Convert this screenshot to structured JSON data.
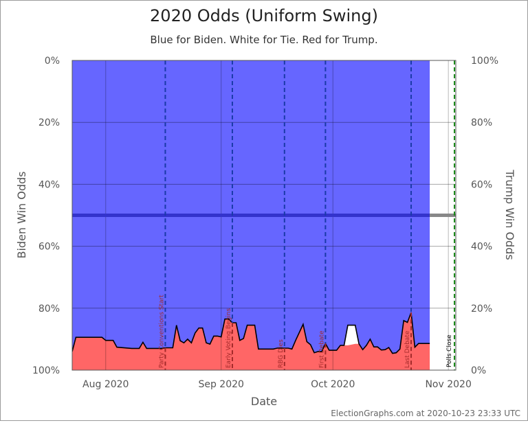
{
  "chart_data": {
    "type": "area",
    "title": "2020 Odds (Uniform Swing)",
    "subtitle": "Blue for Biden. White for Tie. Red for Trump.",
    "xlabel": "Date",
    "ylabel_left": "Biden Win Odds",
    "ylabel_right": "Trump Win Odds",
    "x_range": [
      "2020-07-23",
      "2020-11-03"
    ],
    "x_ticks": [
      {
        "date": "2020-08-01",
        "label": "Aug 2020"
      },
      {
        "date": "2020-09-01",
        "label": "Sep 2020"
      },
      {
        "date": "2020-10-01",
        "label": "Oct 2020"
      },
      {
        "date": "2020-11-01",
        "label": "Nov 2020"
      }
    ],
    "y_ticks_left": [
      "0%",
      "20%",
      "40%",
      "60%",
      "80%",
      "100%"
    ],
    "y_ticks_right": [
      "100%",
      "80%",
      "60%",
      "40%",
      "20%",
      "0%"
    ],
    "last_update": "2020-10-23",
    "series": [
      {
        "name": "Biden",
        "color": "#6666ff",
        "points": [
          [
            "2020-07-23",
            94
          ],
          [
            "2020-07-24",
            89.4
          ],
          [
            "2020-07-31",
            89.4
          ],
          [
            "2020-08-01",
            90.4
          ],
          [
            "2020-08-03",
            90.4
          ],
          [
            "2020-08-04",
            92.6
          ],
          [
            "2020-08-08",
            93
          ],
          [
            "2020-08-10",
            93
          ],
          [
            "2020-08-11",
            91
          ],
          [
            "2020-08-12",
            93
          ],
          [
            "2020-08-16",
            93
          ],
          [
            "2020-08-17",
            92.8
          ],
          [
            "2020-08-19",
            92.8
          ],
          [
            "2020-08-20",
            85.5
          ],
          [
            "2020-08-21",
            90.5
          ],
          [
            "2020-08-22",
            91.2
          ],
          [
            "2020-08-23",
            90
          ],
          [
            "2020-08-24",
            91.2
          ],
          [
            "2020-08-25",
            88
          ],
          [
            "2020-08-26",
            86.4
          ],
          [
            "2020-08-27",
            86.4
          ],
          [
            "2020-08-28",
            91.2
          ],
          [
            "2020-08-29",
            91.6
          ],
          [
            "2020-08-30",
            89
          ],
          [
            "2020-08-31",
            89
          ],
          [
            "2020-09-01",
            89.3
          ],
          [
            "2020-09-02",
            83.5
          ],
          [
            "2020-09-03",
            83.5
          ],
          [
            "2020-09-04",
            84.7
          ],
          [
            "2020-09-05",
            84.7
          ],
          [
            "2020-09-06",
            90.4
          ],
          [
            "2020-09-07",
            89.8
          ],
          [
            "2020-09-08",
            85.5
          ],
          [
            "2020-09-10",
            85.5
          ],
          [
            "2020-09-11",
            93.2
          ],
          [
            "2020-09-15",
            93.2
          ],
          [
            "2020-09-16",
            92.9
          ],
          [
            "2020-09-19",
            92.9
          ],
          [
            "2020-09-20",
            93.2
          ],
          [
            "2020-09-21",
            90.4
          ],
          [
            "2020-09-23",
            85.2
          ],
          [
            "2020-09-24",
            90.8
          ],
          [
            "2020-09-25",
            91.8
          ],
          [
            "2020-09-26",
            94.4
          ],
          [
            "2020-09-27",
            94
          ],
          [
            "2020-09-28",
            94
          ],
          [
            "2020-09-29",
            91.4
          ],
          [
            "2020-09-30",
            93.6
          ],
          [
            "2020-10-02",
            93.6
          ],
          [
            "2020-10-03",
            92
          ],
          [
            "2020-10-04",
            92
          ],
          [
            "2020-10-05",
            85.5
          ],
          [
            "2020-10-07",
            85.5
          ],
          [
            "2020-10-08",
            91.5
          ],
          [
            "2020-10-09",
            93.4
          ],
          [
            "2020-10-10",
            92
          ],
          [
            "2020-10-11",
            90
          ],
          [
            "2020-10-12",
            92.5
          ],
          [
            "2020-10-13",
            92.5
          ],
          [
            "2020-10-14",
            93.5
          ],
          [
            "2020-10-15",
            93.4
          ],
          [
            "2020-10-16",
            92.7
          ],
          [
            "2020-10-17",
            94.6
          ],
          [
            "2020-10-18",
            94.4
          ],
          [
            "2020-10-19",
            93.2
          ],
          [
            "2020-10-20",
            84
          ],
          [
            "2020-10-21",
            84.6
          ],
          [
            "2020-10-22",
            81.4
          ],
          [
            "2020-10-23",
            92.6
          ],
          [
            "2020-10-24",
            91.4
          ],
          [
            "2020-10-25",
            91.4
          ],
          [
            "2020-10-27",
            91.4
          ]
        ]
      },
      {
        "name": "Trump",
        "color": "#ff6666",
        "points": [
          [
            "2020-07-23",
            94
          ],
          [
            "2020-07-24",
            89.4
          ],
          [
            "2020-07-31",
            89.4
          ],
          [
            "2020-08-01",
            90.4
          ],
          [
            "2020-08-03",
            90.4
          ],
          [
            "2020-08-04",
            92.6
          ],
          [
            "2020-08-08",
            93
          ],
          [
            "2020-08-10",
            93
          ],
          [
            "2020-08-11",
            91
          ],
          [
            "2020-08-12",
            93
          ],
          [
            "2020-08-16",
            93
          ],
          [
            "2020-08-17",
            92.8
          ],
          [
            "2020-08-19",
            92.8
          ],
          [
            "2020-08-20",
            85.5
          ],
          [
            "2020-08-21",
            90.5
          ],
          [
            "2020-08-22",
            91.2
          ],
          [
            "2020-08-23",
            90
          ],
          [
            "2020-08-24",
            91.2
          ],
          [
            "2020-08-25",
            88
          ],
          [
            "2020-08-26",
            86.4
          ],
          [
            "2020-08-27",
            86.4
          ],
          [
            "2020-08-28",
            91.2
          ],
          [
            "2020-08-29",
            91.6
          ],
          [
            "2020-08-30",
            89
          ],
          [
            "2020-08-31",
            89
          ],
          [
            "2020-09-01",
            89.3
          ],
          [
            "2020-09-02",
            83.5
          ],
          [
            "2020-09-03",
            83.5
          ],
          [
            "2020-09-04",
            84.7
          ],
          [
            "2020-09-05",
            84.7
          ],
          [
            "2020-09-06",
            90.4
          ],
          [
            "2020-09-07",
            89.8
          ],
          [
            "2020-09-08",
            85.5
          ],
          [
            "2020-09-10",
            85.5
          ],
          [
            "2020-09-11",
            93.2
          ],
          [
            "2020-09-15",
            93.2
          ],
          [
            "2020-09-16",
            92.9
          ],
          [
            "2020-09-19",
            92.9
          ],
          [
            "2020-09-20",
            93.2
          ],
          [
            "2020-09-21",
            90.4
          ],
          [
            "2020-09-23",
            85.2
          ],
          [
            "2020-09-24",
            90.8
          ],
          [
            "2020-09-25",
            91.8
          ],
          [
            "2020-09-26",
            94.4
          ],
          [
            "2020-09-27",
            94
          ],
          [
            "2020-09-28",
            94
          ],
          [
            "2020-09-29",
            91.4
          ],
          [
            "2020-09-30",
            93.6
          ],
          [
            "2020-10-02",
            93.6
          ],
          [
            "2020-10-03",
            92
          ],
          [
            "2020-10-04",
            92
          ],
          [
            "2020-10-05",
            92
          ],
          [
            "2020-10-07",
            91.5
          ],
          [
            "2020-10-08",
            91.5
          ],
          [
            "2020-10-09",
            93.4
          ],
          [
            "2020-10-10",
            92
          ],
          [
            "2020-10-11",
            90
          ],
          [
            "2020-10-12",
            92.5
          ],
          [
            "2020-10-13",
            92.5
          ],
          [
            "2020-10-14",
            93.5
          ],
          [
            "2020-10-15",
            93.4
          ],
          [
            "2020-10-16",
            92.7
          ],
          [
            "2020-10-17",
            94.6
          ],
          [
            "2020-10-18",
            94.4
          ],
          [
            "2020-10-19",
            93.2
          ],
          [
            "2020-10-20",
            84
          ],
          [
            "2020-10-21",
            84.6
          ],
          [
            "2020-10-22",
            81.4
          ],
          [
            "2020-10-23",
            92.6
          ],
          [
            "2020-10-24",
            91.4
          ],
          [
            "2020-10-25",
            91.4
          ],
          [
            "2020-10-27",
            91.4
          ]
        ]
      }
    ],
    "events": [
      {
        "date": "2020-08-17",
        "label": "Party Conventions Start"
      },
      {
        "date": "2020-09-04",
        "label": "Early Voting Begins"
      },
      {
        "date": "2020-09-18",
        "label": "RBG Dies"
      },
      {
        "date": "2020-09-29",
        "label": "First Debate"
      },
      {
        "date": "2020-10-22",
        "label": "Last Debate"
      },
      {
        "date": "2020-11-03",
        "label": "Polls Close"
      }
    ],
    "colors": {
      "biden": "#6666ff",
      "trump": "#ff6666",
      "tie": "#ffffff",
      "midline": "#3333cc",
      "midline_future": "#888888",
      "event_blue": "#1a3aa8",
      "event_red": "#a32a2a",
      "election_day": "#1a8a1a"
    }
  },
  "footer": {
    "credit": "ElectionGraphs.com at 2020-10-23 23:33 UTC"
  }
}
